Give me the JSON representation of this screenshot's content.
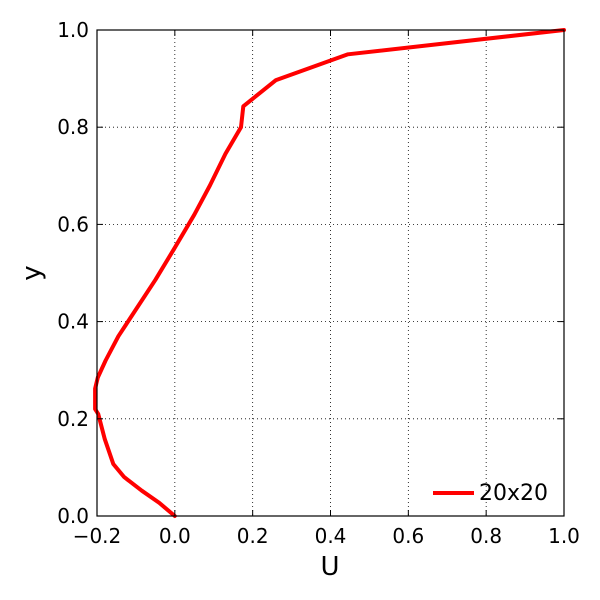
{
  "chart_data": {
    "type": "line",
    "title": "",
    "xlabel": "U",
    "ylabel": "y",
    "xlim": [
      -0.2,
      1.0
    ],
    "ylim": [
      0.0,
      1.0
    ],
    "x_ticks": [
      "−0.2",
      "0.0",
      "0.2",
      "0.4",
      "0.6",
      "0.8",
      "1.0"
    ],
    "x_tick_values": [
      -0.2,
      0.0,
      0.2,
      0.4,
      0.6,
      0.8,
      1.0
    ],
    "y_ticks": [
      "0.0",
      "0.2",
      "0.4",
      "0.6",
      "0.8",
      "1.0"
    ],
    "y_tick_values": [
      0.0,
      0.2,
      0.4,
      0.6,
      0.8,
      1.0
    ],
    "grid": true,
    "legend_position": "bottom-right",
    "series": [
      {
        "name": "20x20",
        "color": "#ff0000",
        "x": [
          0.0,
          -0.04,
          -0.085,
          -0.13,
          -0.158,
          -0.18,
          -0.197,
          -0.205,
          -0.205,
          -0.198,
          -0.178,
          -0.145,
          -0.1,
          -0.05,
          0.0,
          0.05,
          0.09,
          0.13,
          0.17,
          0.176,
          0.26,
          0.445,
          1.0
        ],
        "y": [
          0.0,
          0.027,
          0.052,
          0.08,
          0.107,
          0.158,
          0.21,
          0.22,
          0.262,
          0.285,
          0.32,
          0.37,
          0.425,
          0.486,
          0.552,
          0.62,
          0.68,
          0.745,
          0.8,
          0.843,
          0.897,
          0.95,
          1.0
        ]
      }
    ]
  }
}
